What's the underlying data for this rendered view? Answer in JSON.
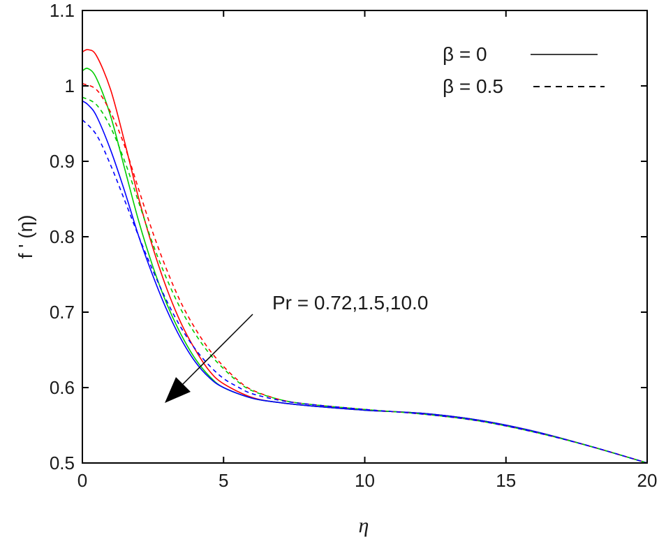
{
  "chart_data": {
    "type": "line",
    "xlabel": "η",
    "ylabel": "f ' (η)",
    "xlim": [
      0,
      20
    ],
    "ylim": [
      0.5,
      1.1
    ],
    "xticks": [
      "0",
      "5",
      "10",
      "15",
      "20"
    ],
    "yticks": [
      "0.5",
      "0.6",
      "0.7",
      "0.8",
      "0.9",
      "1",
      "1.1"
    ],
    "legend": {
      "position": "top-right",
      "entries": [
        {
          "label": "β = 0",
          "style": "solid"
        },
        {
          "label": "β = 0.5",
          "style": "dashed"
        }
      ]
    },
    "annotation": {
      "text": "Pr = 0.72,1.5,10.0"
    },
    "grid": false,
    "colors": {
      "red": "#ff0000",
      "green": "#00cc00",
      "blue": "#0000ff",
      "axis": "#000000"
    },
    "series": [
      {
        "color": "red",
        "style": "solid",
        "x": [
          0,
          0.2,
          0.5,
          1,
          1.5,
          2,
          2.5,
          3,
          3.5,
          4,
          4.5,
          5,
          6,
          7,
          8,
          10,
          12,
          14,
          16,
          18,
          20
        ],
        "y": [
          1.045,
          1.048,
          1.04,
          0.995,
          0.925,
          0.85,
          0.785,
          0.73,
          0.685,
          0.65,
          0.622,
          0.605,
          0.587,
          0.58,
          0.576,
          0.57,
          0.566,
          0.557,
          0.542,
          0.522,
          0.5
        ]
      },
      {
        "color": "green",
        "style": "solid",
        "x": [
          0,
          0.2,
          0.5,
          1,
          1.5,
          2,
          2.5,
          3,
          3.5,
          4,
          4.5,
          5,
          6,
          7,
          8,
          10,
          12,
          14,
          16,
          18,
          20
        ],
        "y": [
          1.02,
          1.023,
          1.01,
          0.96,
          0.89,
          0.82,
          0.76,
          0.71,
          0.67,
          0.638,
          0.615,
          0.6,
          0.586,
          0.58,
          0.576,
          0.57,
          0.566,
          0.557,
          0.542,
          0.522,
          0.5
        ]
      },
      {
        "color": "blue",
        "style": "solid",
        "x": [
          0,
          0.2,
          0.5,
          1,
          1.5,
          2,
          2.5,
          3,
          3.5,
          4,
          4.5,
          5,
          6,
          7,
          8,
          10,
          12,
          14,
          16,
          18,
          20
        ],
        "y": [
          0.98,
          0.975,
          0.96,
          0.915,
          0.86,
          0.8,
          0.748,
          0.702,
          0.664,
          0.634,
          0.613,
          0.6,
          0.586,
          0.58,
          0.576,
          0.57,
          0.566,
          0.557,
          0.542,
          0.522,
          0.5
        ]
      },
      {
        "color": "red",
        "style": "dashed",
        "x": [
          0,
          0.5,
          1,
          1.5,
          2,
          2.5,
          3,
          3.5,
          4,
          4.5,
          5,
          5.5,
          6,
          7,
          8,
          10,
          12,
          14,
          16,
          18,
          20
        ],
        "y": [
          1.003,
          0.995,
          0.965,
          0.92,
          0.862,
          0.805,
          0.755,
          0.712,
          0.678,
          0.65,
          0.628,
          0.61,
          0.597,
          0.584,
          0.578,
          0.571,
          0.565,
          0.556,
          0.541,
          0.522,
          0.5
        ]
      },
      {
        "color": "green",
        "style": "dashed",
        "x": [
          0,
          0.5,
          1,
          1.5,
          2,
          2.5,
          3,
          3.5,
          4,
          4.5,
          5,
          5.5,
          6,
          7,
          8,
          10,
          12,
          14,
          16,
          18,
          20
        ],
        "y": [
          0.985,
          0.975,
          0.945,
          0.9,
          0.845,
          0.79,
          0.743,
          0.703,
          0.671,
          0.645,
          0.625,
          0.608,
          0.596,
          0.584,
          0.578,
          0.571,
          0.565,
          0.556,
          0.541,
          0.522,
          0.5
        ]
      },
      {
        "color": "blue",
        "style": "dashed",
        "x": [
          0,
          0.5,
          1,
          1.5,
          2,
          2.5,
          3,
          3.5,
          4,
          4.5,
          5,
          5.5,
          6,
          7,
          8,
          10,
          12,
          14,
          16,
          18,
          20
        ],
        "y": [
          0.955,
          0.935,
          0.895,
          0.848,
          0.8,
          0.755,
          0.714,
          0.679,
          0.651,
          0.629,
          0.612,
          0.601,
          0.592,
          0.583,
          0.578,
          0.571,
          0.565,
          0.556,
          0.541,
          0.522,
          0.5
        ]
      }
    ]
  }
}
